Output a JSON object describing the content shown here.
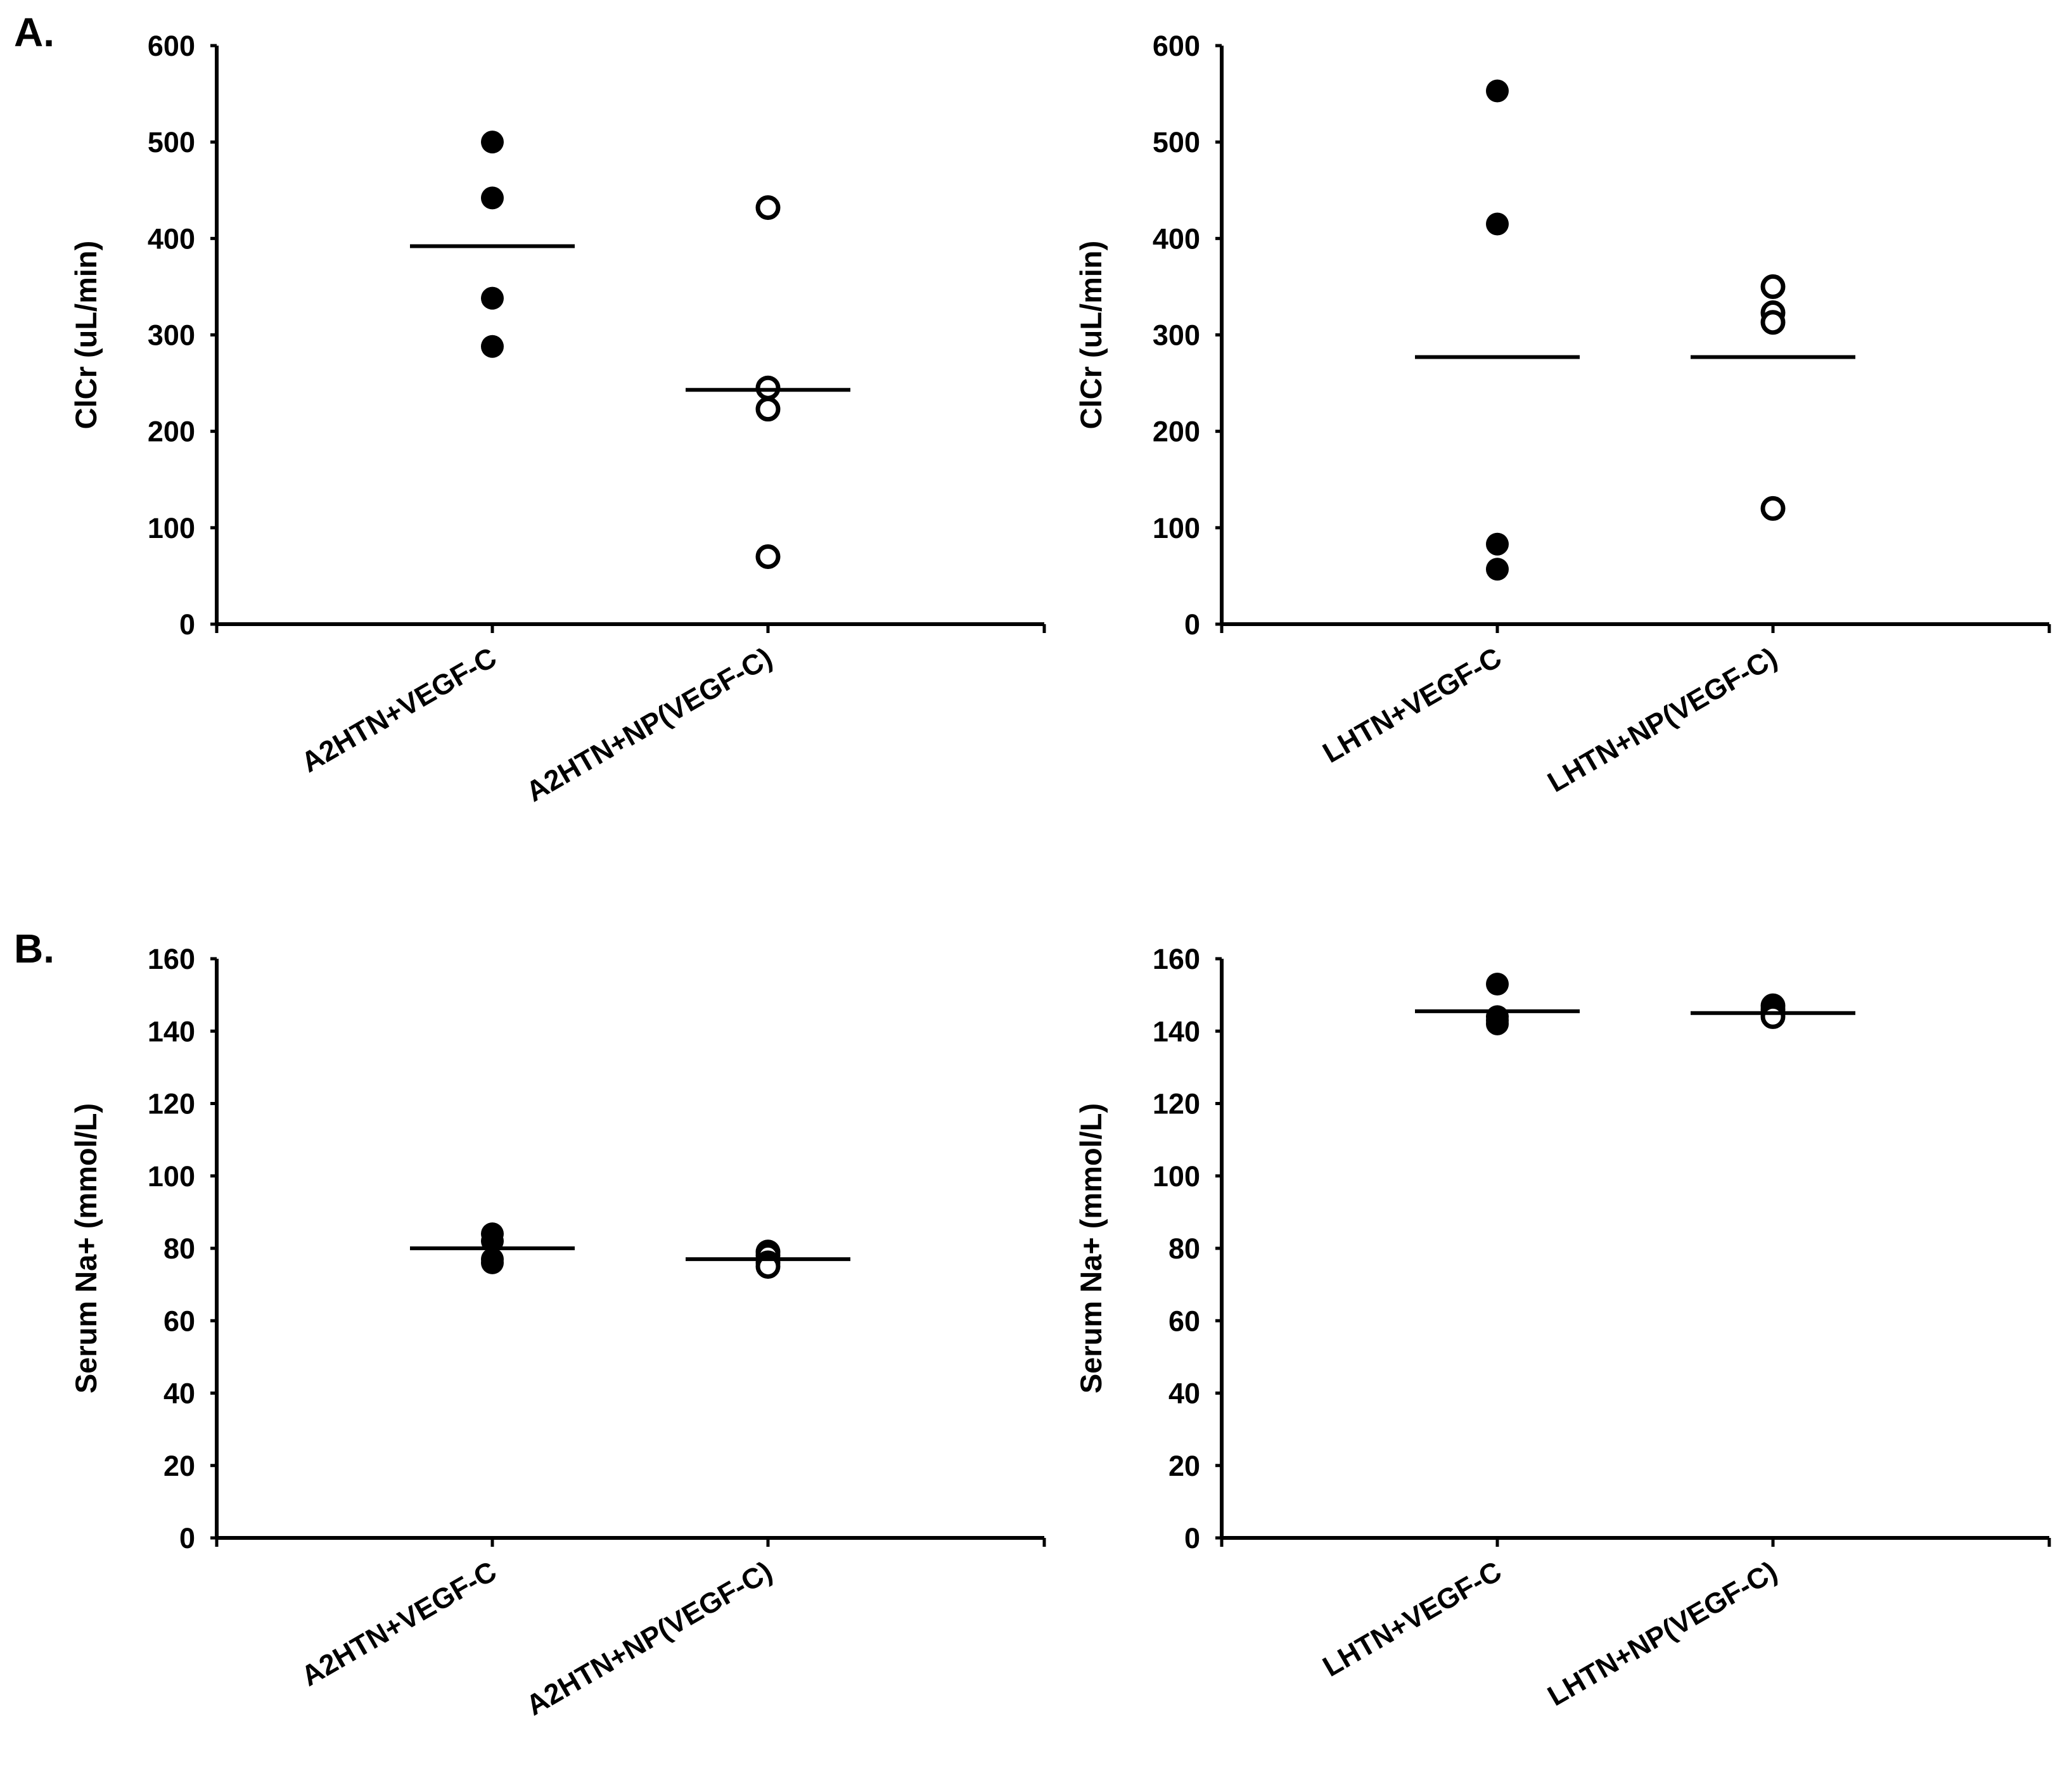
{
  "panel_labels": [
    "A.",
    "B."
  ],
  "colors": {
    "ink": "#000000",
    "background": "#ffffff"
  },
  "chart_data": [
    {
      "type": "scatter",
      "panel": "A.",
      "ylabel": "ClCr (uL/min)",
      "xlabel": "",
      "ylim": [
        0,
        600
      ],
      "yticks": [
        0,
        100,
        200,
        300,
        400,
        500,
        600
      ],
      "categories": [
        "A2HTN+VEGF-C",
        "A2HTN+NP(VEGF-C)"
      ],
      "series": [
        {
          "name": "A2HTN+VEGF-C",
          "marker": "filled",
          "values": [
            500,
            442,
            338,
            288
          ],
          "mean": 392
        },
        {
          "name": "A2HTN+NP(VEGF-C)",
          "marker": "open",
          "values": [
            432,
            245,
            223,
            70
          ],
          "mean": 243
        }
      ]
    },
    {
      "type": "scatter",
      "panel": "A.",
      "ylabel": "ClCr (uL/min)",
      "xlabel": "",
      "ylim": [
        0,
        600
      ],
      "yticks": [
        0,
        100,
        200,
        300,
        400,
        500,
        600
      ],
      "categories": [
        "LHTN+VEGF-C",
        "LHTN+NP(VEGF-C)"
      ],
      "series": [
        {
          "name": "LHTN+VEGF-C",
          "marker": "filled",
          "values": [
            553,
            415,
            83,
            57
          ],
          "mean": 277
        },
        {
          "name": "LHTN+NP(VEGF-C)",
          "marker": "open",
          "values": [
            350,
            323,
            313,
            120
          ],
          "mean": 277
        }
      ]
    },
    {
      "type": "scatter",
      "panel": "B.",
      "ylabel": "Serum Na+ (mmol/L)",
      "xlabel": "",
      "ylim": [
        0,
        160
      ],
      "yticks": [
        0,
        20,
        40,
        60,
        80,
        100,
        120,
        140,
        160
      ],
      "categories": [
        "A2HTN+VEGF-C",
        "A2HTN+NP(VEGF-C)"
      ],
      "series": [
        {
          "name": "A2HTN+VEGF-C",
          "marker": "filled",
          "values": [
            84,
            82,
            77,
            76
          ],
          "mean": 80
        },
        {
          "name": "A2HTN+NP(VEGF-C)",
          "marker": "open",
          "values": [
            79,
            78,
            76,
            75
          ],
          "mean": 77
        }
      ]
    },
    {
      "type": "scatter",
      "panel": "B.",
      "ylabel": "Serum Na+ (mmol/L)",
      "xlabel": "",
      "ylim": [
        0,
        160
      ],
      "yticks": [
        0,
        20,
        40,
        60,
        80,
        100,
        120,
        140,
        160
      ],
      "categories": [
        "LHTN+VEGF-C",
        "LHTN+NP(VEGF-C)"
      ],
      "series": [
        {
          "name": "LHTN+VEGF-C",
          "marker": "filled",
          "values": [
            153,
            144,
            143,
            142
          ],
          "mean": 145.5
        },
        {
          "name": "LHTN+NP(VEGF-C)",
          "marker": "open",
          "values": [
            147,
            146,
            145,
            144
          ],
          "mean": 145
        }
      ]
    }
  ]
}
